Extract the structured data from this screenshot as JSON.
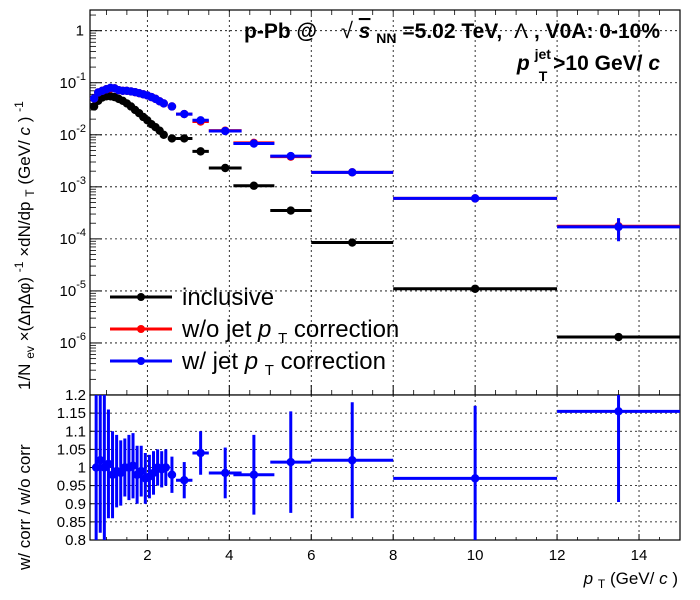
{
  "title": {
    "system": "p-Pb @",
    "energy_label": "s",
    "energy_sub": "NN",
    "energy_value": "=5.02 TeV,",
    "particle": "Λ",
    "centrality": ", V0A: 0-10%",
    "jet_var": "p",
    "jet_sub": "T",
    "jet_sup": "jet",
    "jet_cut": ">10 GeV/",
    "jet_unit_italic": "c"
  },
  "legend": {
    "entries": [
      {
        "text_before": "inclusive",
        "var": "",
        "sub": "",
        "text_after": ""
      },
      {
        "text_before": "w/o jet ",
        "var": "p",
        "sub": "T",
        "text_after": " correction"
      },
      {
        "text_before": "w/ jet ",
        "var": "p",
        "sub": "T",
        "text_after": " correction"
      }
    ]
  },
  "colors": {
    "inclusive": "#000000",
    "wo_corr": "#ff0000",
    "w_corr": "#0000ff",
    "grid": "#000000"
  },
  "axes": {
    "top_ylabel": "1/N",
    "top_ylabel_sub": "ev",
    "top_ylabel_mid": "×(ΔηΔφ)",
    "top_ylabel_sup": "-1",
    "top_ylabel_end": "×dN/dp",
    "top_ylabel_sub2": "T",
    "top_ylabel_unit": " (GeV/",
    "top_ylabel_unit_c": "c",
    "top_ylabel_unit_close": ")",
    "top_ylabel_unit_sup": "-1",
    "bottom_ylabel": "w/ corr / w/o corr",
    "xlabel_var": "p",
    "xlabel_sub": "T",
    "xlabel_unit": " (GeV/",
    "xlabel_unit_c": "c",
    "xlabel_close": ")"
  },
  "chart_data": [
    {
      "type": "scatter",
      "panel": "spectra",
      "xlim": [
        0.6,
        15
      ],
      "ylim": [
        1e-07,
        2.5
      ],
      "yscale": "log",
      "grid": true,
      "legend_position": "bottom-left",
      "x_ticks": [
        2,
        4,
        6,
        8,
        10,
        12,
        14
      ],
      "x_tick_labels": [],
      "y_ticks": [
        1e-06,
        1e-05,
        0.0001,
        0.001,
        0.01,
        0.1,
        1
      ],
      "y_tick_labels": [
        {
          "base": "10",
          "exp": "-6"
        },
        {
          "base": "10",
          "exp": "-5"
        },
        {
          "base": "10",
          "exp": "-4"
        },
        {
          "base": "10",
          "exp": "-3"
        },
        {
          "base": "10",
          "exp": "-2"
        },
        {
          "base": "10",
          "exp": "-1"
        },
        {
          "base": "1",
          "exp": ""
        }
      ],
      "series": [
        {
          "name": "inclusive",
          "x": [
            0.7,
            0.8,
            0.9,
            1.0,
            1.1,
            1.2,
            1.3,
            1.4,
            1.5,
            1.6,
            1.7,
            1.8,
            1.9,
            2.0,
            2.1,
            2.2,
            2.3,
            2.4,
            2.6,
            2.9,
            3.3,
            3.9,
            4.6,
            5.5,
            7.0,
            10.0,
            13.5
          ],
          "y": [
            0.035,
            0.045,
            0.052,
            0.055,
            0.055,
            0.053,
            0.049,
            0.045,
            0.04,
            0.035,
            0.03,
            0.026,
            0.022,
            0.019,
            0.016,
            0.014,
            0.012,
            0.01,
            0.0085,
            0.0085,
            0.0048,
            0.0023,
            0.00105,
            0.00035,
            8.5e-05,
            1.1e-05,
            1.3e-06
          ],
          "xerr": [
            0.05,
            0.05,
            0.05,
            0.05,
            0.05,
            0.05,
            0.05,
            0.05,
            0.05,
            0.05,
            0.05,
            0.05,
            0.05,
            0.05,
            0.05,
            0.05,
            0.05,
            0.05,
            0.1,
            0.2,
            0.2,
            0.4,
            0.5,
            0.5,
            1.0,
            2.0,
            1.5
          ],
          "yerr": [
            0,
            0,
            0,
            0,
            0,
            0,
            0,
            0,
            0,
            0,
            0,
            0,
            0,
            0,
            0,
            0,
            0,
            0,
            0,
            0,
            0,
            0,
            0,
            0,
            0,
            0,
            0
          ]
        },
        {
          "name": "w/o jet pT correction",
          "x": [
            0.7,
            0.8,
            0.9,
            1.0,
            1.1,
            1.2,
            1.3,
            1.4,
            1.5,
            1.6,
            1.7,
            1.8,
            1.9,
            2.0,
            2.1,
            2.2,
            2.3,
            2.4,
            2.6,
            2.9,
            3.3,
            3.9,
            4.6,
            5.5,
            7.0,
            10.0,
            13.5
          ],
          "y": [
            0.05,
            0.065,
            0.07,
            0.075,
            0.078,
            0.078,
            0.072,
            0.07,
            0.07,
            0.068,
            0.066,
            0.063,
            0.06,
            0.057,
            0.053,
            0.049,
            0.044,
            0.04,
            0.035,
            0.025,
            0.018,
            0.012,
            0.007,
            0.0038,
            0.0019,
            0.0006,
            0.000175
          ],
          "xerr": [
            0.05,
            0.05,
            0.05,
            0.05,
            0.05,
            0.05,
            0.05,
            0.05,
            0.05,
            0.05,
            0.05,
            0.05,
            0.05,
            0.05,
            0.05,
            0.05,
            0.05,
            0.05,
            0.1,
            0.2,
            0.2,
            0.4,
            0.5,
            0.5,
            1.0,
            2.0,
            1.5
          ],
          "yerr": [
            0,
            0,
            0,
            0,
            0,
            0,
            0,
            0,
            0,
            0,
            0,
            0,
            0,
            0,
            0,
            0,
            0,
            0,
            0,
            0,
            0,
            0,
            0,
            0,
            0,
            6e-05,
            7e-05
          ]
        },
        {
          "name": "w/ jet pT correction",
          "x": [
            0.7,
            0.8,
            0.9,
            1.0,
            1.1,
            1.2,
            1.3,
            1.4,
            1.5,
            1.6,
            1.7,
            1.8,
            1.9,
            2.0,
            2.1,
            2.2,
            2.3,
            2.4,
            2.6,
            2.9,
            3.3,
            3.9,
            4.6,
            5.5,
            7.0,
            10.0,
            13.5
          ],
          "y": [
            0.05,
            0.065,
            0.07,
            0.075,
            0.08,
            0.078,
            0.072,
            0.07,
            0.07,
            0.068,
            0.066,
            0.063,
            0.06,
            0.057,
            0.053,
            0.049,
            0.044,
            0.04,
            0.035,
            0.025,
            0.019,
            0.0118,
            0.0068,
            0.0039,
            0.0019,
            0.0006,
            0.00017
          ],
          "xerr": [
            0.05,
            0.05,
            0.05,
            0.05,
            0.05,
            0.05,
            0.05,
            0.05,
            0.05,
            0.05,
            0.05,
            0.05,
            0.05,
            0.05,
            0.05,
            0.05,
            0.05,
            0.05,
            0.1,
            0.2,
            0.2,
            0.4,
            0.5,
            0.5,
            1.0,
            2.0,
            1.5
          ],
          "yerr": [
            0,
            0,
            0,
            0,
            0,
            0,
            0,
            0,
            0,
            0,
            0,
            0,
            0,
            0,
            0,
            0,
            0,
            0,
            0,
            0,
            0,
            0,
            0,
            0,
            0,
            6e-05,
            8e-05
          ]
        }
      ]
    },
    {
      "type": "scatter",
      "panel": "ratio",
      "xlim": [
        0.6,
        15
      ],
      "ylim": [
        0.8,
        1.2
      ],
      "yscale": "linear",
      "grid": true,
      "x_ticks": [
        2,
        4,
        6,
        8,
        10,
        12,
        14
      ],
      "x_tick_labels": [
        "2",
        "4",
        "6",
        "8",
        "10",
        "12",
        "14"
      ],
      "y_ticks": [
        0.8,
        0.85,
        0.9,
        0.95,
        1.0,
        1.05,
        1.1,
        1.15,
        1.2
      ],
      "y_tick_labels": [
        "0.8",
        "0.85",
        "0.9",
        "0.95",
        "1",
        "1.05",
        "1.1",
        "1.15",
        "1.2"
      ],
      "series": [
        {
          "name": "w/ corr / w/o corr",
          "x": [
            0.75,
            0.85,
            0.95,
            1.05,
            1.15,
            1.25,
            1.35,
            1.45,
            1.55,
            1.65,
            1.75,
            1.85,
            1.95,
            2.05,
            2.15,
            2.25,
            2.35,
            2.45,
            2.6,
            2.9,
            3.3,
            3.9,
            4.6,
            5.5,
            7.0,
            10.0,
            13.5
          ],
          "y": [
            1.0,
            1.02,
            1.0,
            1.01,
            0.98,
            0.99,
            0.985,
            1.0,
            1.0,
            1.005,
            0.98,
            0.99,
            0.97,
            0.975,
            0.985,
            1.0,
            0.995,
            1.0,
            0.98,
            0.965,
            1.04,
            0.985,
            0.98,
            1.015,
            1.02,
            0.97,
            1.155
          ],
          "xerr": [
            0.05,
            0.05,
            0.05,
            0.05,
            0.05,
            0.05,
            0.05,
            0.05,
            0.05,
            0.05,
            0.05,
            0.05,
            0.05,
            0.05,
            0.05,
            0.05,
            0.05,
            0.05,
            0.1,
            0.2,
            0.2,
            0.4,
            0.5,
            0.5,
            1.0,
            2.0,
            1.5
          ],
          "yerr": [
            0.2,
            0.2,
            0.2,
            0.15,
            0.12,
            0.1,
            0.09,
            0.08,
            0.09,
            0.09,
            0.08,
            0.07,
            0.07,
            0.06,
            0.06,
            0.05,
            0.05,
            0.05,
            0.05,
            0.05,
            0.06,
            0.07,
            0.11,
            0.14,
            0.16,
            0.2,
            0.25
          ]
        }
      ]
    }
  ]
}
